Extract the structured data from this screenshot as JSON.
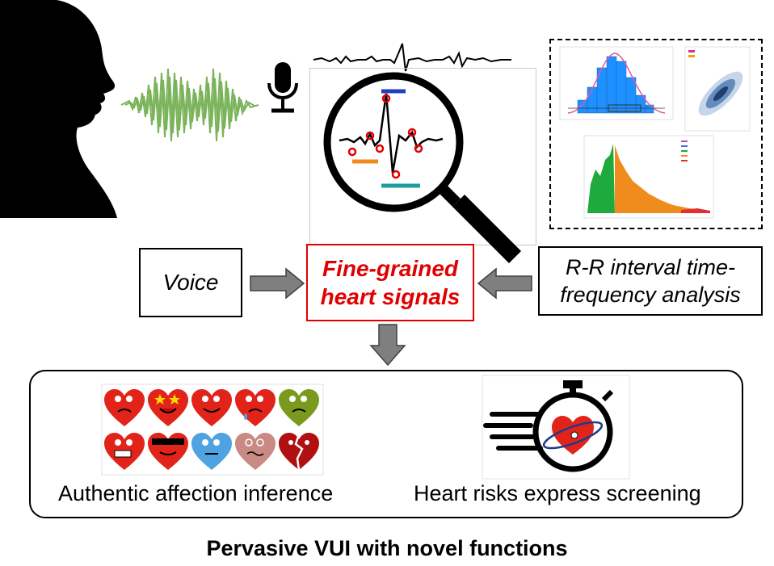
{
  "voice_label": "Voice",
  "center_label": {
    "line1": "Fine-grained",
    "line2": "heart signals"
  },
  "rr_label": {
    "line1": "R-R interval time-",
    "line2": "frequency analysis"
  },
  "captions": {
    "affection": "Authentic affection inference",
    "screening": "Heart risks express screening"
  },
  "footer_title": "Pervasive VUI with novel functions",
  "colors": {
    "accent_red": "#e00000",
    "wave_green": "#7ab35a",
    "hist_blue": "#1e90ff",
    "heart_red": "#e2231a"
  },
  "icons": [
    "person-silhouette",
    "sound-wave",
    "microphone-icon",
    "magnifier-icon",
    "stopwatch-icon",
    "heart-icon"
  ]
}
